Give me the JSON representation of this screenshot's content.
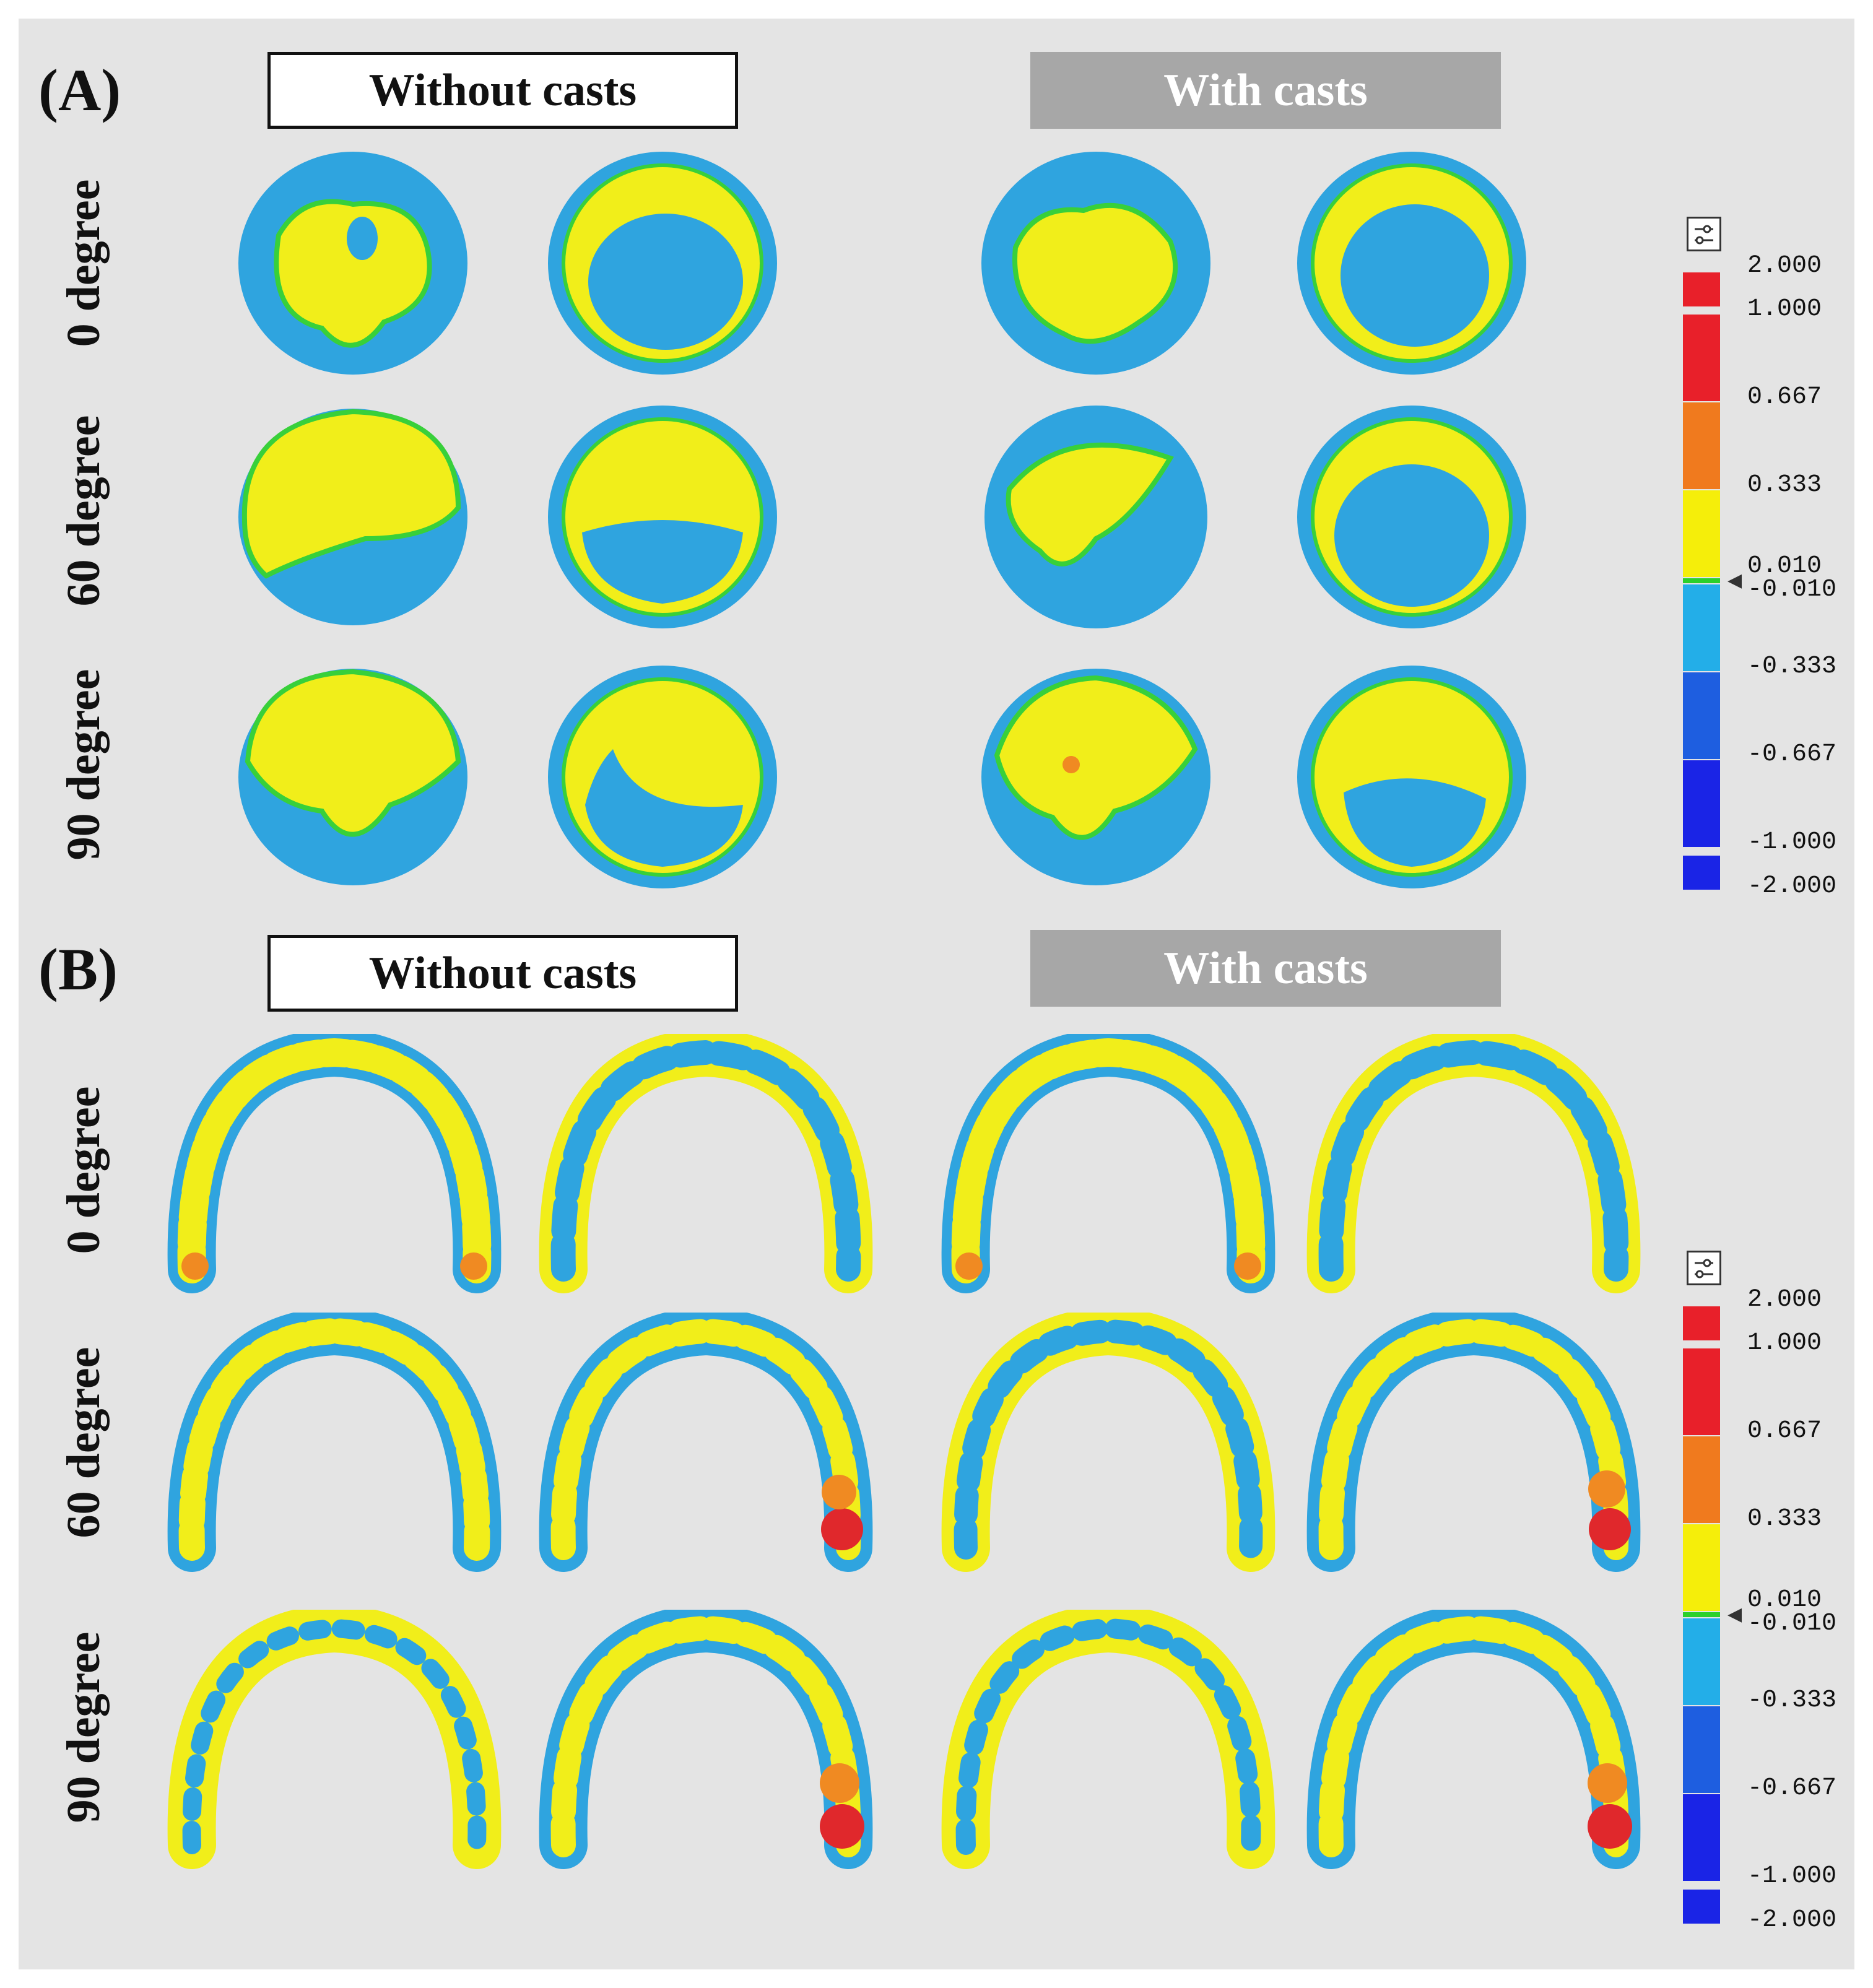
{
  "panels": {
    "A": {
      "label": "(A)",
      "header_left": "Without casts",
      "header_right": "With casts",
      "row_labels": [
        "0 degree",
        "60 degree",
        "90 degree"
      ]
    },
    "B": {
      "label": "(B)",
      "header_left": "Without casts",
      "header_right": "With casts",
      "row_labels": [
        "0 degree",
        "60 degree",
        "90 degree"
      ]
    }
  },
  "legend": {
    "ticks": [
      "2.000",
      "1.000",
      "0.667",
      "0.333",
      "0.010",
      "-0.010",
      "-0.333",
      "-0.667",
      "-1.000",
      "-2.000"
    ],
    "band_colors": [
      "#e8202a",
      "#e8202a",
      "#f07a1e",
      "#f5ee0a",
      "#2bd02b",
      "#23aee8",
      "#1e5ee0",
      "#1a24e6",
      "#1a24e6"
    ],
    "icon": "settings-slider-icon",
    "marker": "pointer-marker-icon"
  },
  "colors": {
    "blue": "#2fa4df",
    "yellow": "#f1ee1a",
    "green": "#38d03a",
    "orange": "#f08a22",
    "red": "#e0282c",
    "background": "#e4e4e4"
  }
}
